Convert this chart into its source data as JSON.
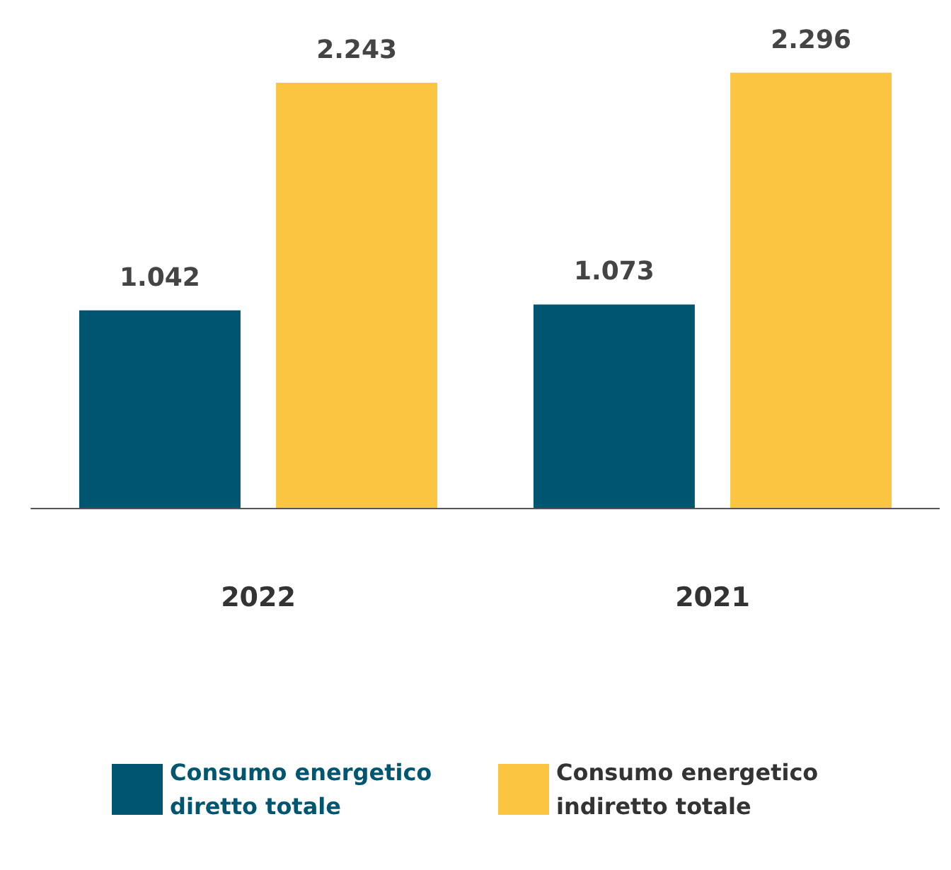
{
  "chart_data": {
    "type": "bar",
    "categories": [
      "2022",
      "2021"
    ],
    "series": [
      {
        "name": "Consumo energetico diretto totale",
        "color": "#005670",
        "values": [
          1042,
          1073
        ],
        "value_labels": [
          "1.042",
          "1.073"
        ]
      },
      {
        "name": "Consumo energetico indiretto totale",
        "color": "#fcc541",
        "values": [
          2243,
          2296
        ],
        "value_labels": [
          "2.243",
          "2.296"
        ]
      }
    ],
    "legend": "bottom"
  }
}
